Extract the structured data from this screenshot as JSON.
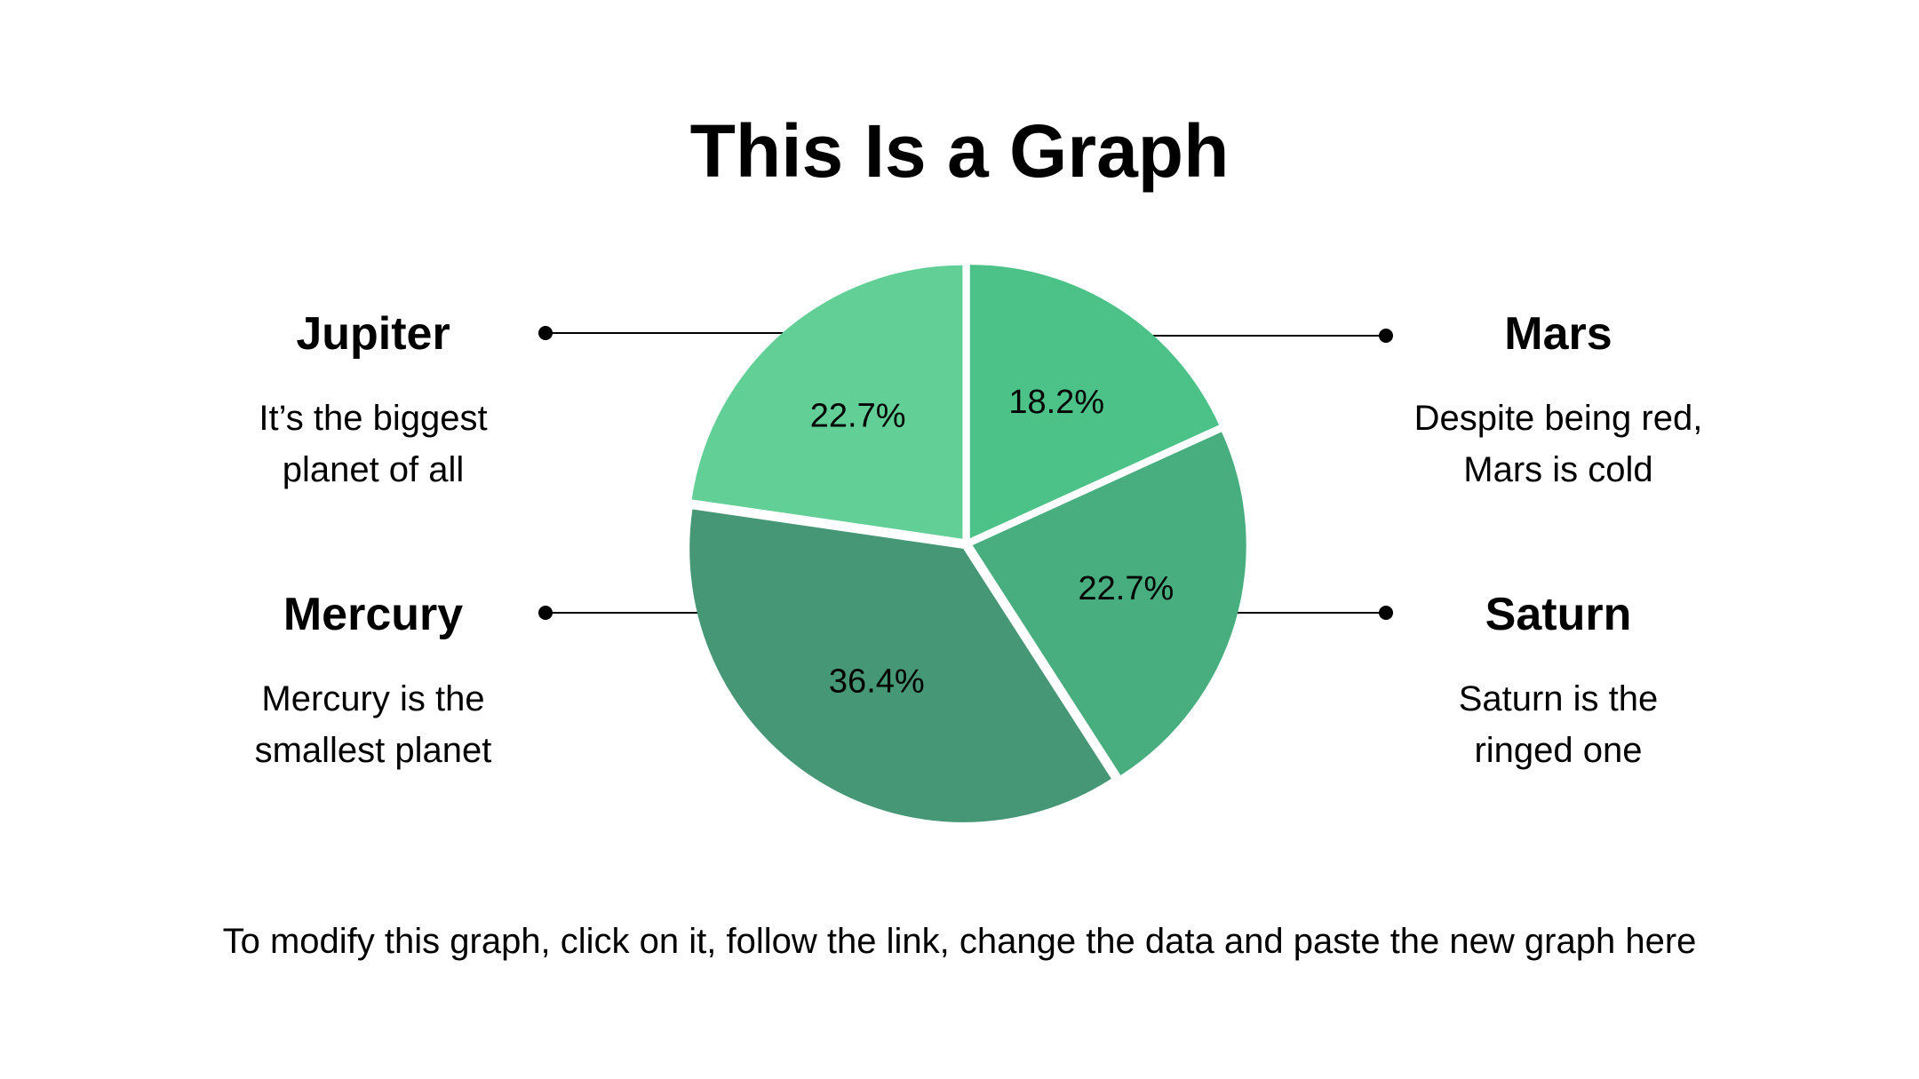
{
  "title": "This Is a Graph",
  "footer": "To modify this graph, click on it, follow the link, change the data and paste the new graph here",
  "labels": {
    "jupiter": {
      "name": "Jupiter",
      "desc1": "It’s the biggest",
      "desc2": "planet of all"
    },
    "mercury": {
      "name": "Mercury",
      "desc1": "Mercury is the",
      "desc2": "smallest planet"
    },
    "mars": {
      "name": "Mars",
      "desc1": "Despite being red,",
      "desc2": "Mars is cold"
    },
    "saturn": {
      "name": "Saturn",
      "desc1": "Saturn is the",
      "desc2": "ringed one"
    }
  },
  "chart_data": {
    "type": "pie",
    "title": "This Is a Graph",
    "slices": [
      {
        "name": "Mars",
        "value": 18.2,
        "label": "18.2%",
        "color": "#4cc289"
      },
      {
        "name": "Saturn",
        "value": 22.7,
        "label": "22.7%",
        "color": "#48ae7f"
      },
      {
        "name": "Mercury",
        "value": 36.4,
        "label": "36.4%",
        "color": "#469775"
      },
      {
        "name": "Jupiter",
        "value": 22.7,
        "label": "22.7%",
        "color": "#62d096"
      }
    ],
    "start": "top",
    "direction": "clockwise",
    "legend": "callouts-left-right"
  }
}
